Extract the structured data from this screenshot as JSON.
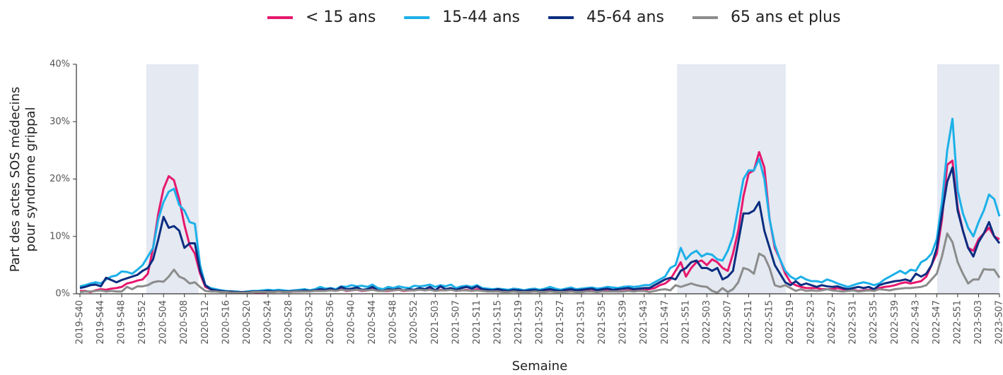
{
  "chart_data": {
    "type": "line",
    "ylabel": [
      "Part des actes SOS médecins",
      "pour syndrome grippal"
    ],
    "xlabel": "Semaine",
    "ylim": [
      0,
      40
    ],
    "yticks": [
      {
        "value": 0,
        "label": "0%"
      },
      {
        "value": 10,
        "label": "10%"
      },
      {
        "value": 20,
        "label": "20%"
      },
      {
        "value": 30,
        "label": "30%"
      },
      {
        "value": 40,
        "label": "40%"
      }
    ],
    "shaded_ranges": [
      [
        12.7,
        22.7
      ],
      [
        114.3,
        135.1
      ],
      [
        164.1,
        176
      ]
    ],
    "shade_color": "#e4e9f2",
    "categories": [
      "2019-S40",
      null,
      null,
      null,
      "2019-S44",
      null,
      null,
      null,
      "2019-S48",
      null,
      null,
      null,
      "2019-S52",
      null,
      null,
      null,
      "2020-S04",
      null,
      null,
      null,
      "2020-S08",
      null,
      null,
      null,
      "2020-S12",
      null,
      null,
      null,
      "2020-S16",
      null,
      null,
      null,
      "2020-S20",
      null,
      null,
      null,
      "2020-S24",
      null,
      null,
      null,
      "2020-S28",
      null,
      null,
      null,
      "2020-S32",
      null,
      null,
      null,
      "2020-S36",
      null,
      null,
      null,
      "2020-S40",
      null,
      null,
      null,
      "2020-S44",
      null,
      null,
      null,
      "2020-S48",
      null,
      null,
      null,
      "2020-S52",
      null,
      null,
      null,
      "2021-S03",
      null,
      null,
      null,
      "2021-S07",
      null,
      null,
      null,
      "2021-S11",
      null,
      null,
      null,
      "2021-S15",
      null,
      null,
      null,
      "2021-S19",
      null,
      null,
      null,
      "2021-S23",
      null,
      null,
      null,
      "2021-S27",
      null,
      null,
      null,
      "2021-S31",
      null,
      null,
      null,
      "2021-S35",
      null,
      null,
      null,
      "2021-S39",
      null,
      null,
      null,
      "2021-S43",
      null,
      null,
      null,
      "2021-S47",
      null,
      null,
      null,
      "2021-S51",
      null,
      null,
      null,
      "2022-S03",
      null,
      null,
      null,
      "2022-S07",
      null,
      null,
      null,
      "2022-S11",
      null,
      null,
      null,
      "2022-S15",
      null,
      null,
      null,
      "2022-S19",
      null,
      null,
      null,
      "2022-S23",
      null,
      null,
      null,
      "2022-S27",
      null,
      null,
      null,
      "2022-S31",
      null,
      null,
      null,
      "2022-S35",
      null,
      null,
      null,
      "2022-S39",
      null,
      null,
      null,
      "2022-S43",
      null,
      null,
      null,
      "2022-S47",
      null,
      null,
      null,
      "2022-S51",
      null,
      null,
      null,
      "2023-S03",
      null,
      null,
      null,
      "2023-S07"
    ],
    "series": [
      {
        "name": "< 15 ans",
        "color": "#e6186e",
        "values": [
          0.5,
          0.5,
          0.3,
          0.6,
          0.8,
          0.7,
          0.9,
          1.0,
          1.2,
          1.8,
          2.0,
          2.3,
          2.5,
          3.5,
          8,
          14,
          18.3,
          20.5,
          19.8,
          16.5,
          12,
          8.5,
          7,
          3.5,
          1.2,
          0.8,
          0.5,
          0.4,
          0.3,
          0.3,
          0.2,
          0.2,
          0.2,
          0.3,
          0.2,
          0.2,
          0.3,
          0.3,
          0.4,
          0.3,
          0.3,
          0.4,
          0.4,
          0.5,
          0.5,
          0.6,
          0.6,
          0.5,
          0.7,
          0.6,
          0.8,
          0.5,
          0.6,
          0.7,
          0.5,
          0.6,
          0.8,
          0.6,
          0.5,
          0.5,
          0.6,
          0.7,
          0.5,
          0.6,
          0.6,
          0.8,
          0.6,
          0.8,
          0.5,
          0.7,
          0.6,
          0.9,
          0.5,
          0.6,
          0.7,
          0.5,
          0.8,
          0.6,
          0.5,
          0.4,
          0.5,
          0.4,
          0.4,
          0.5,
          0.4,
          0.3,
          0.4,
          0.5,
          0.3,
          0.4,
          0.5,
          0.4,
          0.3,
          0.4,
          0.5,
          0.4,
          0.4,
          0.5,
          0.5,
          0.4,
          0.5,
          0.6,
          0.5,
          0.4,
          0.5,
          0.6,
          0.5,
          0.6,
          0.7,
          0.8,
          1.0,
          1.5,
          1.8,
          2.5,
          4,
          5.5,
          3,
          4.5,
          5.5,
          5.8,
          5,
          6,
          5.5,
          4.5,
          4,
          7,
          11,
          17,
          21,
          21.5,
          24.7,
          22,
          13,
          8,
          6,
          3.5,
          2,
          1.5,
          1.2,
          1.0,
          1.0,
          1.0,
          0.8,
          0.8,
          0.8,
          1.0,
          0.8,
          0.6,
          0.7,
          0.5,
          0.6,
          0.7,
          0.8,
          1.0,
          1.2,
          1.3,
          1.5,
          1.8,
          2.0,
          1.8,
          2.0,
          2.2,
          3,
          5,
          7,
          13,
          22.5,
          23.2,
          15,
          11,
          8,
          7.5,
          9.5,
          10.5,
          11.5,
          10,
          9.5
        ]
      },
      {
        "name": "15-44 ans",
        "color": "#1cb0e8",
        "values": [
          1.3,
          1.5,
          1.8,
          2.0,
          1.8,
          2.5,
          3.0,
          3.2,
          3.9,
          3.8,
          3.5,
          4.2,
          5.0,
          6.5,
          8,
          13,
          16,
          17.8,
          18.3,
          15.5,
          14.5,
          12.5,
          12.2,
          5,
          1.5,
          1.0,
          0.8,
          0.6,
          0.5,
          0.4,
          0.4,
          0.3,
          0.4,
          0.5,
          0.5,
          0.6,
          0.7,
          0.6,
          0.7,
          0.6,
          0.5,
          0.6,
          0.7,
          0.8,
          0.6,
          0.8,
          1.2,
          0.9,
          1.0,
          0.8,
          1.3,
          1.2,
          1.5,
          1.3,
          1.4,
          1.2,
          1.6,
          1.0,
          0.8,
          1.2,
          1.0,
          1.3,
          1.1,
          1.0,
          1.4,
          1.3,
          1.4,
          1.6,
          1.2,
          1.5,
          1.3,
          1.6,
          1.0,
          1.3,
          1.4,
          1.2,
          1.5,
          1.0,
          0.9,
          0.8,
          0.9,
          0.8,
          0.7,
          0.9,
          0.8,
          0.6,
          0.8,
          0.9,
          0.7,
          0.9,
          1.2,
          0.9,
          0.7,
          0.9,
          1.1,
          0.8,
          0.9,
          1.0,
          1.1,
          0.9,
          1.0,
          1.2,
          1.1,
          1.0,
          1.2,
          1.3,
          1.2,
          1.3,
          1.5,
          1.5,
          2.0,
          2.5,
          3,
          4.5,
          5,
          8,
          6,
          7,
          7.5,
          6.5,
          7,
          6.8,
          6,
          5.8,
          7.5,
          10,
          15,
          20,
          21.5,
          21.5,
          23.5,
          20,
          13,
          8.5,
          6,
          4,
          3,
          2.5,
          3,
          2.5,
          2.2,
          2.2,
          2.0,
          2.5,
          2.2,
          1.8,
          1.5,
          1.2,
          1.5,
          1.8,
          2.0,
          1.8,
          1.5,
          1.8,
          2.5,
          3.0,
          3.5,
          4.0,
          3.5,
          4.2,
          4.0,
          5.5,
          6,
          7,
          9.5,
          16,
          25,
          30.5,
          18,
          14,
          11.5,
          10,
          12.5,
          14.5,
          17.3,
          16.5,
          13.5
        ]
      },
      {
        "name": "45-64 ans",
        "color": "#0b2d80",
        "values": [
          1.0,
          1.2,
          1.5,
          1.6,
          1.3,
          2.8,
          2.4,
          2.0,
          2.4,
          2.7,
          3.0,
          3.3,
          4.0,
          4.5,
          6,
          9.5,
          13.4,
          11.5,
          11.8,
          11,
          8,
          8.8,
          8.8,
          4,
          1.5,
          0.8,
          0.6,
          0.5,
          0.4,
          0.4,
          0.3,
          0.3,
          0.3,
          0.4,
          0.4,
          0.4,
          0.5,
          0.4,
          0.5,
          0.4,
          0.4,
          0.5,
          0.5,
          0.6,
          0.5,
          0.6,
          0.8,
          0.7,
          0.9,
          0.6,
          1.2,
          0.8,
          0.9,
          1.1,
          0.7,
          0.8,
          1.2,
          0.6,
          0.5,
          0.8,
          0.7,
          0.9,
          0.6,
          0.8,
          0.7,
          1.0,
          0.8,
          1.2,
          0.6,
          1.3,
          0.8,
          1.0,
          0.7,
          1.0,
          1.2,
          0.9,
          1.3,
          0.8,
          0.7,
          0.6,
          0.8,
          0.6,
          0.5,
          0.7,
          0.6,
          0.5,
          0.6,
          0.7,
          0.5,
          0.7,
          0.8,
          0.6,
          0.5,
          0.7,
          0.8,
          0.6,
          0.7,
          0.8,
          0.9,
          0.6,
          0.8,
          0.9,
          0.7,
          0.8,
          0.9,
          1.0,
          0.8,
          0.9,
          1.0,
          1.0,
          1.5,
          2.0,
          2.5,
          2.8,
          2.5,
          4,
          4.5,
          5.5,
          5.8,
          4.5,
          4.5,
          4,
          4.5,
          2.5,
          3.0,
          4,
          9,
          14,
          14,
          14.5,
          16,
          11,
          8,
          5,
          3.5,
          2,
          1.5,
          2.2,
          1.5,
          1.8,
          1.5,
          1.2,
          1.5,
          1.3,
          1.2,
          1.3,
          1.0,
          0.8,
          1.0,
          1.2,
          1.0,
          1.2,
          0.8,
          1.5,
          1.8,
          2.0,
          2.2,
          2.3,
          2.5,
          2.2,
          3.5,
          3.0,
          3.5,
          5,
          8,
          14,
          19.5,
          22,
          14.5,
          11,
          8,
          6.5,
          9,
          10.5,
          12.5,
          10,
          8.8
        ]
      },
      {
        "name": "65 ans et plus",
        "color": "#8c8c8c",
        "values": [
          0.3,
          0.4,
          0.4,
          0.5,
          0.6,
          0.4,
          0.5,
          0.4,
          0.4,
          1.2,
          0.8,
          1.3,
          1.3,
          1.5,
          2,
          2.2,
          2.1,
          3,
          4.2,
          3,
          2.6,
          1.8,
          2,
          1.2,
          0.5,
          0.4,
          0.4,
          0.3,
          0.3,
          0.2,
          0.2,
          0.2,
          0.2,
          0.3,
          0.3,
          0.3,
          0.3,
          0.3,
          0.4,
          0.3,
          0.3,
          0.4,
          0.4,
          0.4,
          0.4,
          0.5,
          0.5,
          0.5,
          0.6,
          0.5,
          0.7,
          0.6,
          0.6,
          0.7,
          0.6,
          0.6,
          0.7,
          0.5,
          0.5,
          0.6,
          0.6,
          0.7,
          0.6,
          0.6,
          0.6,
          0.7,
          0.6,
          0.7,
          0.5,
          0.6,
          0.6,
          0.7,
          0.5,
          0.6,
          0.6,
          0.5,
          0.6,
          0.5,
          0.4,
          0.4,
          0.4,
          0.3,
          0.3,
          0.4,
          0.3,
          0.3,
          0.3,
          0.4,
          0.3,
          0.3,
          0.4,
          0.3,
          0.3,
          0.3,
          0.4,
          0.3,
          0.3,
          0.4,
          0.4,
          0.3,
          0.4,
          0.4,
          0.4,
          0.4,
          0.4,
          0.5,
          0.4,
          0.5,
          0.5,
          0.3,
          0.5,
          0.7,
          0.8,
          0.6,
          1.5,
          1.2,
          1.5,
          1.8,
          1.5,
          1.3,
          1.2,
          0.5,
          0.2,
          1.0,
          0.3,
          0.8,
          2,
          4.5,
          4.2,
          3.5,
          7,
          6.5,
          4.5,
          1.5,
          1.2,
          1.5,
          1.0,
          0.5,
          0.8,
          0.5,
          0.6,
          0.5,
          0.6,
          0.8,
          0.6,
          0.5,
          0.4,
          0.5,
          0.6,
          0.4,
          0.5,
          0.6,
          0.5,
          0.8,
          0.7,
          0.6,
          0.8,
          0.9,
          1.0,
          1.0,
          1.1,
          1.2,
          1.5,
          2.5,
          3.5,
          6.5,
          10.5,
          9,
          5.5,
          3.5,
          1.8,
          2.5,
          2.5,
          4.3,
          4.2,
          4.2,
          2.8
        ]
      }
    ]
  }
}
